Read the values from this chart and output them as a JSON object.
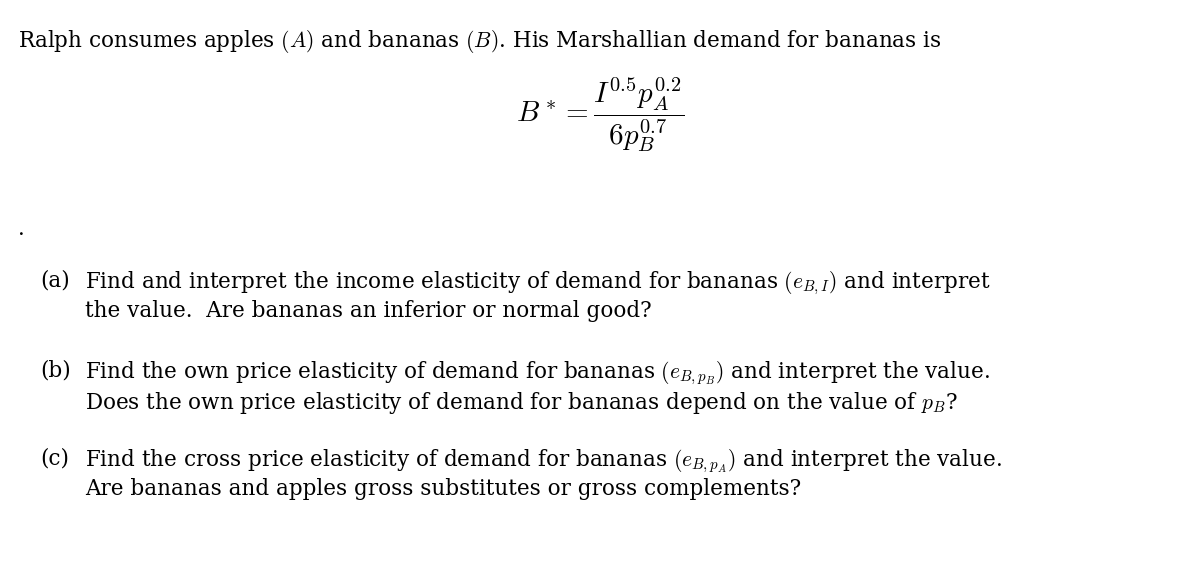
{
  "background_color": "#ffffff",
  "figsize": [
    12.0,
    5.88
  ],
  "dpi": 100,
  "intro_text": "Ralph consumes apples $(A)$ and bananas $(B)$. His Marshallian demand for bananas is",
  "formula": "$B^* = \\dfrac{I^{0.5}p_A^{0.2}}{6p_B^{0.7}}$",
  "dot": ".",
  "part_a_label": "(a)",
  "part_a_line1": "Find and interpret the income elasticity of demand for bananas $(e_{B,I})$ and interpret",
  "part_a_line2": "the value.  Are bananas an inferior or normal good?",
  "part_b_label": "(b)",
  "part_b_line1": "Find the own price elasticity of demand for bananas $(e_{B,p_B})$ and interpret the value.",
  "part_b_line2": "Does the own price elasticity of demand for bananas depend on the value of $p_B$?",
  "part_c_label": "(c)",
  "part_c_line1": "Find the cross price elasticity of demand for bananas $(e_{B,p_A})$ and interpret the value.",
  "part_c_line2": "Are bananas and apples gross substitutes or gross complements?",
  "text_color": "#000000",
  "font_size_intro": 15.5,
  "font_size_formula": 21,
  "font_size_body": 15.5,
  "font_size_dot": 15
}
